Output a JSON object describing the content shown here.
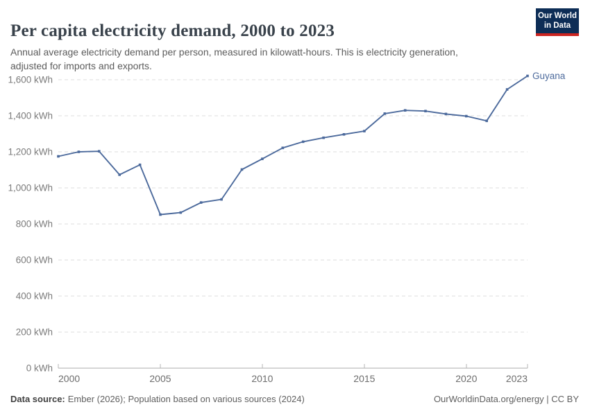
{
  "header": {
    "title": "Per capita electricity demand, 2000 to 2023",
    "subtitle": "Annual average electricity demand per person, measured in kilowatt-hours. This is electricity generation, adjusted for imports and exports."
  },
  "logo": {
    "line1": "Our World",
    "line2": "in Data"
  },
  "colors": {
    "logo_navy": "#0d2d56",
    "logo_red": "#cb2521",
    "series_blue": "#4C6A9C"
  },
  "chart_data": {
    "type": "line",
    "title": "Per capita electricity demand, 2000 to 2023",
    "unit_suffix": " kWh",
    "x": [
      2000,
      2001,
      2002,
      2003,
      2004,
      2005,
      2006,
      2007,
      2008,
      2009,
      2010,
      2011,
      2012,
      2013,
      2014,
      2015,
      2016,
      2017,
      2018,
      2019,
      2020,
      2021,
      2022,
      2023
    ],
    "series": [
      {
        "name": "Guyana",
        "color": "#4C6A9C",
        "values": [
          1175,
          1200,
          1203,
          1073,
          1128,
          852,
          863,
          919,
          936,
          1102,
          1161,
          1222,
          1256,
          1278,
          1297,
          1315,
          1412,
          1430,
          1426,
          1410,
          1398,
          1372,
          1546,
          1621
        ]
      }
    ],
    "ylim": [
      0,
      1600
    ],
    "ytick_step": 200,
    "xticks": [
      2000,
      2005,
      2010,
      2015,
      2020,
      2023
    ],
    "grid": "horizontal-dashed",
    "legend_position": "end-of-line-label"
  },
  "footer": {
    "source_label": "Data source:",
    "source_text": "Ember (2026); Population based on various sources (2024)",
    "credit": "OurWorldinData.org/energy | CC BY"
  }
}
